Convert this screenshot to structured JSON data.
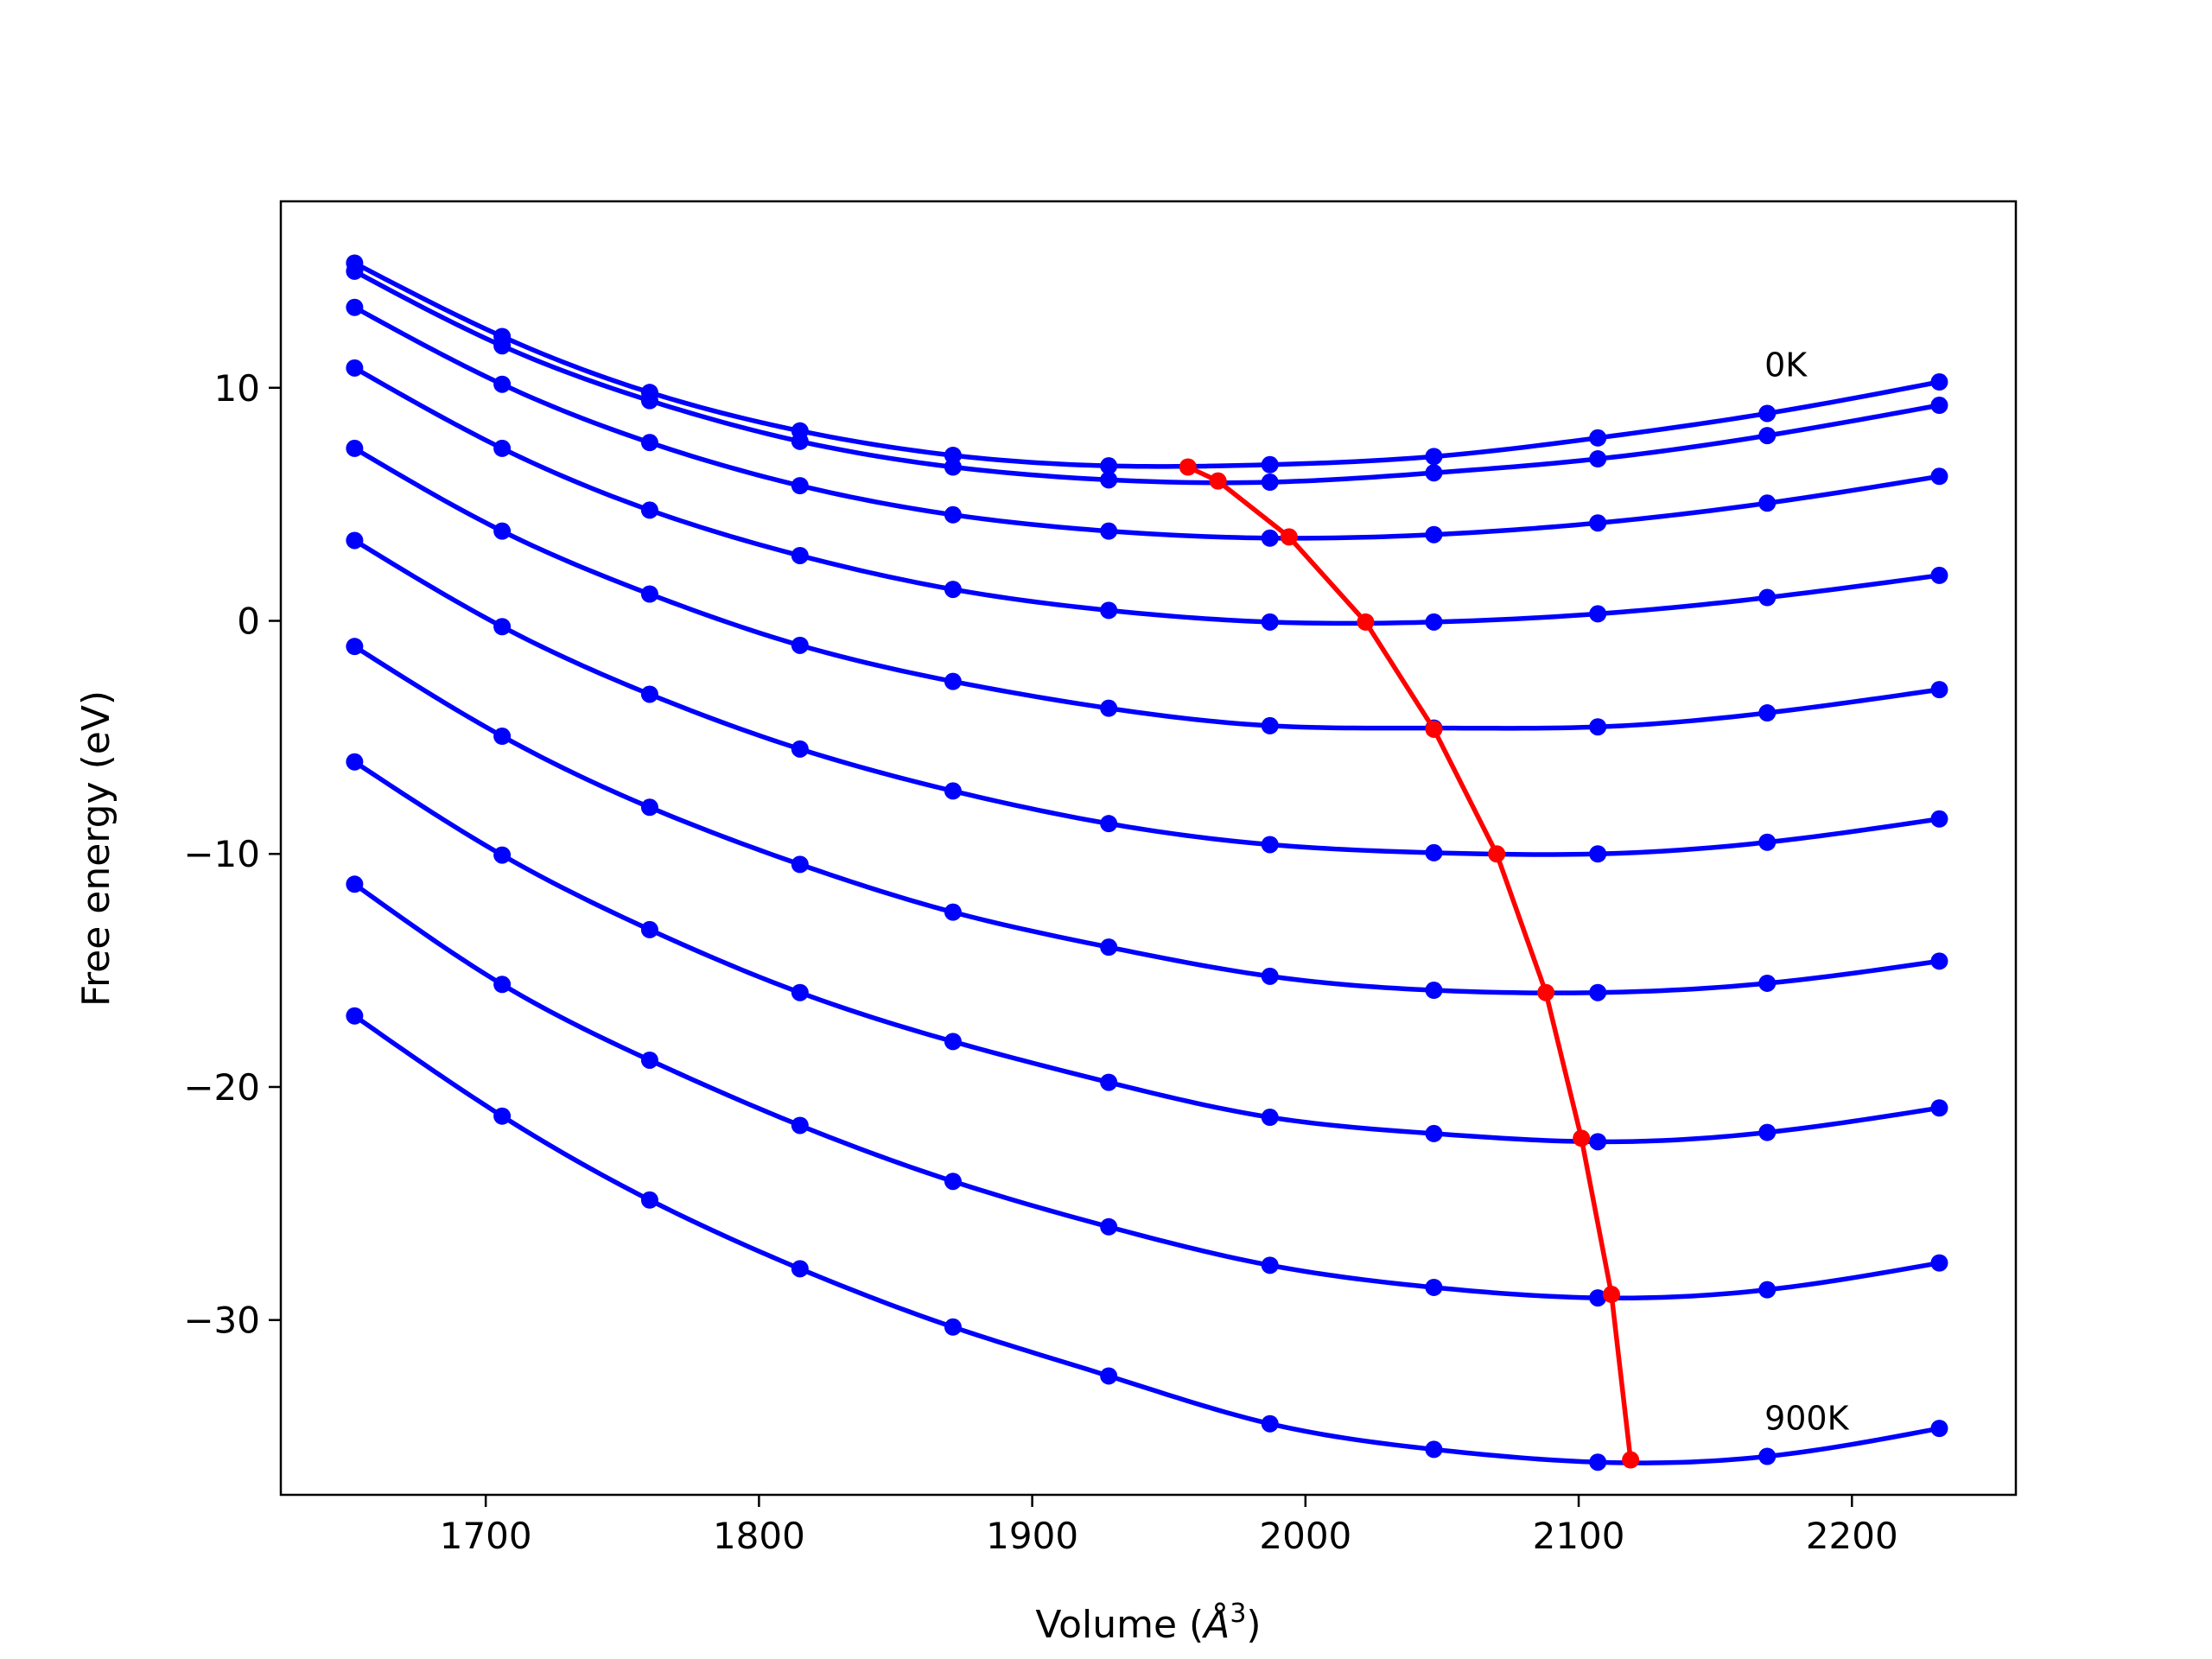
{
  "chart_data": {
    "type": "line",
    "title": "",
    "xlabel": "Volume (Å³)",
    "xlabel_base": "Volume (",
    "xlabel_unit": "Å",
    "xlabel_exp": "3",
    "xlabel_close": ")",
    "ylabel": "Free energy (eV)",
    "xlim": [
      1625,
      2260
    ],
    "ylim": [
      -37.5,
      18
    ],
    "xticks": [
      1700,
      1800,
      1900,
      2000,
      2100,
      2200
    ],
    "yticks": [
      10,
      0,
      -10,
      -20,
      -30
    ],
    "xtick_labels": [
      "1700",
      "1800",
      "1900",
      "2000",
      "2100",
      "2200"
    ],
    "ytick_labels": [
      "10",
      "0",
      "−10",
      "−20",
      "−30"
    ],
    "grid": false,
    "legend": "none",
    "annotations": [
      {
        "text": "0K",
        "x": 2168,
        "y": 10.5
      },
      {
        "text": "900K",
        "x": 2168,
        "y": -34.7
      }
    ],
    "colors": {
      "curves": "#0000ff",
      "minima": "#ff0000",
      "axes": "#000000"
    },
    "x": [
      1652,
      1706,
      1760,
      1815,
      1871,
      1928,
      1987,
      2047,
      2107,
      2169,
      2232
    ],
    "series": [
      {
        "values": [
          15.35,
          12.2,
          9.8,
          8.15,
          7.1,
          6.65,
          6.7,
          7.05,
          7.85,
          8.9,
          10.25
        ]
      },
      {
        "values": [
          15.0,
          11.8,
          9.45,
          7.7,
          6.6,
          6.05,
          5.95,
          6.35,
          6.95,
          7.95,
          9.25
        ]
      },
      {
        "values": [
          13.45,
          10.15,
          7.65,
          5.8,
          4.55,
          3.85,
          3.55,
          3.7,
          4.2,
          5.05,
          6.2
        ]
      },
      {
        "values": [
          10.85,
          7.4,
          4.75,
          2.8,
          1.35,
          0.45,
          -0.05,
          -0.05,
          0.3,
          1.0,
          1.95
        ]
      },
      {
        "values": [
          7.4,
          3.85,
          1.15,
          -1.05,
          -2.6,
          -3.75,
          -4.5,
          -4.6,
          -4.55,
          -3.95,
          -2.95
        ]
      },
      {
        "values": [
          3.45,
          -0.25,
          -3.15,
          -5.5,
          -7.3,
          -8.7,
          -9.6,
          -9.95,
          -10.0,
          -9.5,
          -8.5
        ]
      },
      {
        "values": [
          -1.1,
          -4.95,
          -8.0,
          -10.45,
          -12.5,
          -14.0,
          -15.25,
          -15.85,
          -15.95,
          -15.55,
          -14.6
        ]
      },
      {
        "values": [
          -6.05,
          -10.05,
          -13.25,
          -15.95,
          -18.05,
          -19.8,
          -21.3,
          -22.0,
          -22.35,
          -21.95,
          -20.9
        ]
      },
      {
        "values": [
          -11.3,
          -15.6,
          -18.85,
          -21.65,
          -24.05,
          -26.0,
          -27.65,
          -28.6,
          -29.05,
          -28.7,
          -27.55
        ]
      },
      {
        "values": [
          -16.95,
          -21.25,
          -24.85,
          -27.8,
          -30.3,
          -32.4,
          -34.45,
          -35.55,
          -36.1,
          -35.85,
          -34.65
        ]
      }
    ],
    "minima": {
      "x": [
        1957,
        1968,
        1994,
        2022,
        2047,
        2070,
        2088,
        2101,
        2112,
        2119
      ],
      "y": [
        6.6,
        6.0,
        3.6,
        -0.05,
        -4.65,
        -10.0,
        -15.95,
        -22.2,
        -28.9,
        -36.0
      ]
    }
  }
}
